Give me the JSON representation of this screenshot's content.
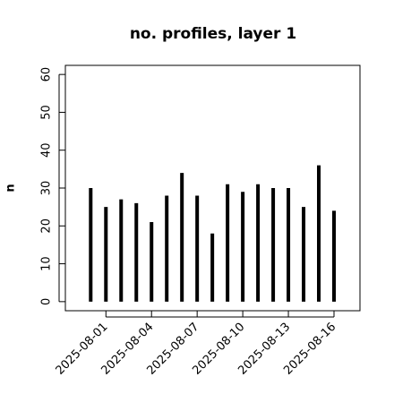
{
  "chart_data": {
    "type": "line-h",
    "title": "no. profiles, layer 1",
    "y_label": "n",
    "x": [
      "2025-07-31",
      "2025-08-01",
      "2025-08-02",
      "2025-08-03",
      "2025-08-04",
      "2025-08-05",
      "2025-08-06",
      "2025-08-07",
      "2025-08-08",
      "2025-08-09",
      "2025-08-10",
      "2025-08-11",
      "2025-08-12",
      "2025-08-13",
      "2025-08-14",
      "2025-08-15",
      "2025-08-16"
    ],
    "values": [
      30,
      25,
      27,
      26,
      21,
      28,
      34,
      28,
      18,
      31,
      29,
      31,
      30,
      30,
      25,
      36,
      24
    ],
    "color": "#000000",
    "xlim": [
      "2025-07-29T08:00",
      "2025-08-17T17:00"
    ],
    "xticks": [
      "2025-08-01",
      "2025-08-04",
      "2025-08-07",
      "2025-08-10",
      "2025-08-13",
      "2025-08-16"
    ],
    "xtick_colors": [
      "#000000",
      "#000000",
      "#228b22",
      "#000000",
      "#000000",
      "#000000"
    ],
    "ylim": [
      -2.4,
      62.4
    ],
    "yticks": [
      0,
      10,
      20,
      30,
      40,
      50,
      60
    ]
  }
}
